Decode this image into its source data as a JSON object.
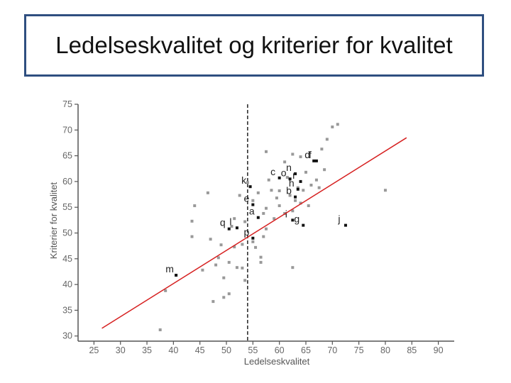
{
  "title": "Ledelseskvalitet og kriterier for kvalitet",
  "chart_data": {
    "type": "scatter",
    "title": "",
    "xlabel": "Ledelseskvalitet",
    "ylabel": "Kriterier for kvalitet",
    "xlim": [
      22,
      93
    ],
    "ylim": [
      29,
      75
    ],
    "xticks": [
      25,
      30,
      35,
      40,
      45,
      50,
      55,
      60,
      65,
      70,
      75,
      80,
      85,
      90
    ],
    "yticks": [
      30,
      35,
      40,
      45,
      50,
      55,
      60,
      65,
      70,
      75
    ],
    "grid": false,
    "legend": "none",
    "colors": {
      "points": "#999999",
      "labeled_points": "#111111",
      "trend": "#d62020",
      "reference": "#222222"
    },
    "reference_line": {
      "x": 54
    },
    "trend_line": {
      "x": [
        26.5,
        84
      ],
      "y": [
        31.5,
        68.5
      ]
    },
    "points": [
      [
        37.5,
        31.2
      ],
      [
        38.5,
        38.8
      ],
      [
        40.5,
        41.8
      ],
      [
        43.5,
        52.3
      ],
      [
        43.5,
        49.3
      ],
      [
        44,
        55.3
      ],
      [
        45.5,
        42.8
      ],
      [
        46.5,
        57.8
      ],
      [
        47.5,
        36.7
      ],
      [
        47,
        48.8
      ],
      [
        48,
        43.8
      ],
      [
        48.5,
        45.2
      ],
      [
        49,
        47.7
      ],
      [
        49.5,
        41.3
      ],
      [
        49.5,
        37.5
      ],
      [
        50.5,
        38.2
      ],
      [
        50.5,
        44.3
      ],
      [
        51,
        51.3
      ],
      [
        51.5,
        47.3
      ],
      [
        51.5,
        52.8
      ],
      [
        52,
        43.3
      ],
      [
        52.5,
        57.3
      ],
      [
        53,
        47.8
      ],
      [
        53.5,
        40.8
      ],
      [
        53,
        43.2
      ],
      [
        53.5,
        52.2
      ],
      [
        54,
        59.8
      ],
      [
        55,
        56.3
      ],
      [
        55,
        48.3
      ],
      [
        55.5,
        47.2
      ],
      [
        56,
        57.8
      ],
      [
        56.5,
        45.3
      ],
      [
        56.5,
        44.3
      ],
      [
        57,
        53.8
      ],
      [
        57,
        49.3
      ],
      [
        57.5,
        54.8
      ],
      [
        57.5,
        50.8
      ],
      [
        57.5,
        65.8
      ],
      [
        58,
        60.3
      ],
      [
        58.5,
        58.3
      ],
      [
        59,
        52.8
      ],
      [
        59.5,
        56.8
      ],
      [
        60,
        55.3
      ],
      [
        60,
        58.2
      ],
      [
        61,
        63.8
      ],
      [
        61,
        53.8
      ],
      [
        61.5,
        60.8
      ],
      [
        62,
        57.3
      ],
      [
        62.5,
        65.3
      ],
      [
        62.5,
        54.3
      ],
      [
        62.5,
        43.3
      ],
      [
        63,
        56.3
      ],
      [
        63.5,
        58.8
      ],
      [
        64,
        64.8
      ],
      [
        64,
        55.8
      ],
      [
        64.5,
        58.3
      ],
      [
        65,
        61.8
      ],
      [
        65.5,
        55.3
      ],
      [
        66,
        59.3
      ],
      [
        67,
        60.3
      ],
      [
        67.5,
        58.8
      ],
      [
        68,
        66.3
      ],
      [
        68.5,
        62.3
      ],
      [
        69,
        68.2
      ],
      [
        70,
        70.6
      ],
      [
        71,
        71.1
      ],
      [
        80,
        58.3
      ]
    ],
    "labeled_points": [
      {
        "label": "k",
        "x": 54.5,
        "y": 59.0
      },
      {
        "label": "e",
        "x": 55.0,
        "y": 55.5
      },
      {
        "label": "c",
        "x": 60.0,
        "y": 60.7
      },
      {
        "label": "o",
        "x": 62.0,
        "y": 60.5
      },
      {
        "label": "n",
        "x": 63.0,
        "y": 61.5
      },
      {
        "label": "r",
        "x": 64.0,
        "y": 60.0
      },
      {
        "label": "h",
        "x": 63.5,
        "y": 58.5
      },
      {
        "label": "b",
        "x": 63.0,
        "y": 57.0
      },
      {
        "label": "d",
        "x": 66.5,
        "y": 64.0
      },
      {
        "label": "f",
        "x": 67.0,
        "y": 64.0
      },
      {
        "label": "i",
        "x": 62.5,
        "y": 52.5
      },
      {
        "label": "a",
        "x": 56.0,
        "y": 53.0
      },
      {
        "label": "g",
        "x": 64.5,
        "y": 51.5
      },
      {
        "label": "j",
        "x": 72.5,
        "y": 51.5
      },
      {
        "label": "q",
        "x": 50.5,
        "y": 50.8
      },
      {
        "label": "l",
        "x": 52.0,
        "y": 51.0
      },
      {
        "label": "p",
        "x": 55.0,
        "y": 49.0
      },
      {
        "label": "m",
        "x": 40.5,
        "y": 41.8
      }
    ]
  }
}
